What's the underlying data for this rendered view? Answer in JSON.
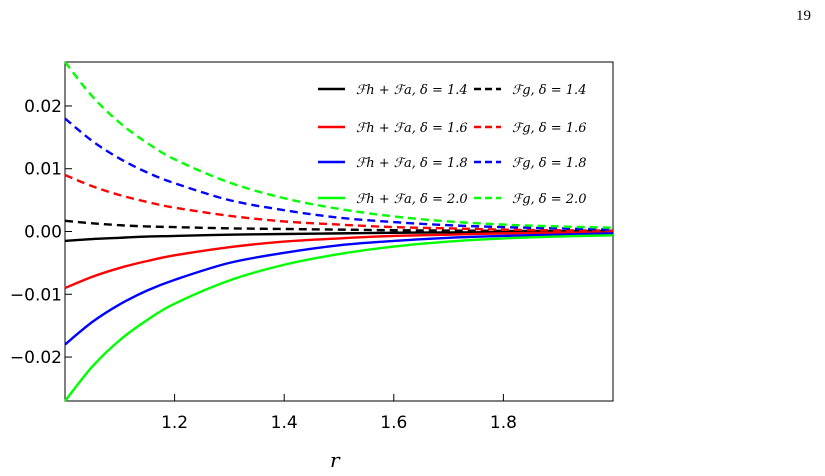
{
  "page_number": "19",
  "chart_data": {
    "type": "line",
    "title": "",
    "xlabel": "r",
    "ylabel": "",
    "xlim": [
      1.0,
      2.0
    ],
    "ylim": [
      -0.027,
      0.027
    ],
    "xticks": [
      1.2,
      1.4,
      1.6,
      1.8
    ],
    "xtick_labels": [
      "1.2",
      "1.4",
      "1.6",
      "1.8"
    ],
    "yticks": [
      -0.02,
      -0.01,
      0.0,
      0.01,
      0.02
    ],
    "ytick_labels": [
      "−0.02",
      "−0.01",
      "0.00",
      "0.01",
      "0.02"
    ],
    "grid": false,
    "legend_position": "top-right",
    "series": [
      {
        "name": "ℱh + ℱa, δ = 1.4",
        "color": "#000000",
        "dash": "solid",
        "x": [
          1.0,
          1.05,
          1.1,
          1.15,
          1.2,
          1.3,
          1.4,
          1.5,
          1.6,
          1.7,
          1.8,
          1.9,
          2.0
        ],
        "y": [
          -0.0015,
          -0.0012,
          -0.001,
          -0.0008,
          -0.0007,
          -0.0005,
          -0.0004,
          -0.0003,
          -0.0002,
          -0.00015,
          -0.0001,
          -8e-05,
          -6e-05
        ]
      },
      {
        "name": "ℱg, δ = 1.4",
        "color": "#000000",
        "dash": "dashed",
        "x": [
          1.0,
          1.05,
          1.1,
          1.15,
          1.2,
          1.3,
          1.4,
          1.5,
          1.6,
          1.7,
          1.8,
          1.9,
          2.0
        ],
        "y": [
          0.0017,
          0.0013,
          0.001,
          0.0008,
          0.0007,
          0.0005,
          0.0004,
          0.0003,
          0.0002,
          0.00015,
          0.0001,
          8e-05,
          6e-05
        ]
      },
      {
        "name": "ℱh + ℱa, δ = 1.6",
        "color": "#ff0000",
        "dash": "solid",
        "x": [
          1.0,
          1.05,
          1.1,
          1.15,
          1.2,
          1.3,
          1.4,
          1.5,
          1.6,
          1.7,
          1.8,
          1.9,
          2.0
        ],
        "y": [
          -0.009,
          -0.0072,
          -0.0058,
          -0.0047,
          -0.0038,
          -0.0025,
          -0.0016,
          -0.0011,
          -0.0007,
          -0.0005,
          -0.0003,
          -0.0002,
          -0.00015
        ]
      },
      {
        "name": "ℱg, δ = 1.6",
        "color": "#ff0000",
        "dash": "dashed",
        "x": [
          1.0,
          1.05,
          1.1,
          1.15,
          1.2,
          1.3,
          1.4,
          1.5,
          1.6,
          1.7,
          1.8,
          1.9,
          2.0
        ],
        "y": [
          0.009,
          0.0072,
          0.0058,
          0.0047,
          0.0038,
          0.0025,
          0.0016,
          0.0011,
          0.0007,
          0.0005,
          0.0003,
          0.0002,
          0.00015
        ]
      },
      {
        "name": "ℱh + ℱa, δ = 1.8",
        "color": "#0000ff",
        "dash": "solid",
        "x": [
          1.0,
          1.05,
          1.1,
          1.15,
          1.2,
          1.3,
          1.4,
          1.5,
          1.6,
          1.7,
          1.8,
          1.9,
          2.0
        ],
        "y": [
          -0.018,
          -0.0144,
          -0.0116,
          -0.0094,
          -0.0077,
          -0.005,
          -0.0034,
          -0.0022,
          -0.0015,
          -0.001,
          -0.0007,
          -0.0005,
          -0.0003
        ]
      },
      {
        "name": "ℱg, δ = 1.8",
        "color": "#0000ff",
        "dash": "dashed",
        "x": [
          1.0,
          1.05,
          1.1,
          1.15,
          1.2,
          1.3,
          1.4,
          1.5,
          1.6,
          1.7,
          1.8,
          1.9,
          2.0
        ],
        "y": [
          0.018,
          0.0144,
          0.0116,
          0.0094,
          0.0077,
          0.005,
          0.0034,
          0.0022,
          0.0015,
          0.001,
          0.0007,
          0.0005,
          0.0003
        ]
      },
      {
        "name": "ℱh + ℱa, δ = 2.0",
        "color": "#00ff00",
        "dash": "solid",
        "x": [
          1.0,
          1.05,
          1.1,
          1.15,
          1.2,
          1.3,
          1.4,
          1.5,
          1.6,
          1.7,
          1.8,
          1.9,
          2.0
        ],
        "y": [
          -0.027,
          -0.0215,
          -0.0173,
          -0.0141,
          -0.0115,
          -0.0078,
          -0.0053,
          -0.0036,
          -0.0024,
          -0.0016,
          -0.0011,
          -0.0008,
          -0.0006
        ]
      },
      {
        "name": "ℱg, δ = 2.0",
        "color": "#00ff00",
        "dash": "dashed",
        "x": [
          1.0,
          1.05,
          1.1,
          1.15,
          1.2,
          1.3,
          1.4,
          1.5,
          1.6,
          1.7,
          1.8,
          1.9,
          2.0
        ],
        "y": [
          0.027,
          0.0215,
          0.0173,
          0.0141,
          0.0115,
          0.0078,
          0.0053,
          0.0036,
          0.0024,
          0.0016,
          0.0011,
          0.0008,
          0.0006
        ]
      }
    ]
  }
}
